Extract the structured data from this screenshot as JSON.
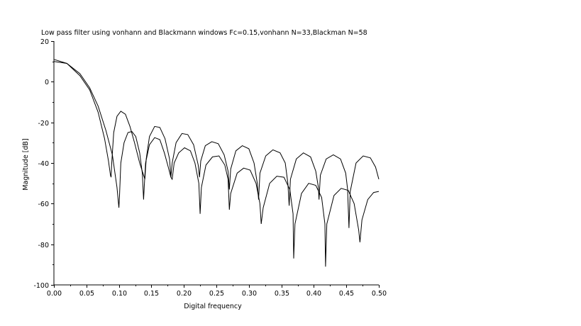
{
  "chart_data": {
    "type": "line",
    "title": "Low pass filter using vonhann and Blackmann windows Fc=0.15,vonhann N=33,Blackman N=58",
    "xlabel": "Digital frequency",
    "ylabel": "Magnitude [dB]",
    "xlim": [
      0,
      0.5
    ],
    "ylim": [
      -100,
      20
    ],
    "x_ticks": [
      0.0,
      0.05,
      0.1,
      0.15,
      0.2,
      0.25,
      0.3,
      0.35,
      0.4,
      0.45,
      0.5
    ],
    "x_tick_labels": [
      "0.00",
      "0.05",
      "0.10",
      "0.15",
      "0.20",
      "0.25",
      "0.30",
      "0.35",
      "0.40",
      "0.45",
      "0.50"
    ],
    "y_ticks": [
      20,
      0,
      -20,
      -40,
      -60,
      -80,
      -100
    ],
    "y_tick_labels": [
      "20",
      "0",
      "-20",
      "-40",
      "-60",
      "-80",
      "-100"
    ],
    "grid": false,
    "series": [
      {
        "x": [
          0.0,
          0.02,
          0.04,
          0.055,
          0.068,
          0.078,
          0.084,
          0.087,
          0.088,
          0.089,
          0.092,
          0.097,
          0.103,
          0.11,
          0.117,
          0.124,
          0.132,
          0.138,
          0.14,
          0.142,
          0.147,
          0.155,
          0.163,
          0.171,
          0.178,
          0.18,
          0.182,
          0.188,
          0.197,
          0.206,
          0.215,
          0.222,
          0.224,
          0.226,
          0.233,
          0.243,
          0.253,
          0.262,
          0.268,
          0.27,
          0.272,
          0.28,
          0.29,
          0.3,
          0.308,
          0.313,
          0.315,
          0.317,
          0.326,
          0.337,
          0.348,
          0.356,
          0.36,
          0.362,
          0.364,
          0.373,
          0.384,
          0.395,
          0.403,
          0.407,
          0.408,
          0.41,
          0.419,
          0.43,
          0.441,
          0.449,
          0.452,
          0.454,
          0.456,
          0.465,
          0.476,
          0.487,
          0.495,
          0.5
        ],
        "y": [
          11,
          9,
          3,
          -4,
          -15,
          -28,
          -39,
          -46,
          -47,
          -40,
          -25,
          -17,
          -14.5,
          -16,
          -22,
          -30,
          -40,
          -46,
          -48,
          -38,
          -27,
          -22,
          -22.5,
          -28,
          -38,
          -47,
          -40,
          -30,
          -25.5,
          -26,
          -31,
          -41,
          -47,
          -39,
          -31.5,
          -29.5,
          -30.5,
          -36,
          -44,
          -53,
          -43,
          -34,
          -31.5,
          -33,
          -40,
          -50,
          -58,
          -45,
          -36.5,
          -33.5,
          -35,
          -40,
          -50,
          -61,
          -48,
          -38,
          -35,
          -37,
          -44,
          -52,
          -58,
          -46,
          -38,
          -36,
          -38,
          -45,
          -53,
          -72,
          -54,
          -40,
          -36.5,
          -37.5,
          -42,
          -48
        ]
      },
      {
        "x": [
          0.0,
          0.02,
          0.04,
          0.055,
          0.068,
          0.08,
          0.09,
          0.097,
          0.1,
          0.101,
          0.103,
          0.108,
          0.114,
          0.12,
          0.126,
          0.132,
          0.136,
          0.138,
          0.139,
          0.141,
          0.147,
          0.155,
          0.163,
          0.17,
          0.176,
          0.18,
          0.182,
          0.185,
          0.192,
          0.201,
          0.21,
          0.217,
          0.223,
          0.225,
          0.227,
          0.234,
          0.244,
          0.254,
          0.263,
          0.268,
          0.27,
          0.272,
          0.282,
          0.292,
          0.302,
          0.311,
          0.317,
          0.319,
          0.322,
          0.332,
          0.343,
          0.354,
          0.363,
          0.368,
          0.369,
          0.371,
          0.381,
          0.392,
          0.403,
          0.412,
          0.417,
          0.418,
          0.42,
          0.431,
          0.442,
          0.453,
          0.462,
          0.469,
          0.471,
          0.474,
          0.483,
          0.492,
          0.5
        ],
        "y": [
          10,
          9,
          4,
          -3,
          -12,
          -24,
          -36,
          -52,
          -62,
          -56,
          -40,
          -30,
          -25,
          -24.5,
          -27,
          -35,
          -45,
          -58,
          -52,
          -40,
          -31,
          -27.5,
          -28.5,
          -35,
          -42,
          -47,
          -48,
          -40,
          -35,
          -32.5,
          -34,
          -40,
          -50,
          -65,
          -52,
          -41,
          -37,
          -36.5,
          -41,
          -48,
          -63,
          -55,
          -45,
          -42.5,
          -43.5,
          -50,
          -60,
          -70,
          -62,
          -50,
          -46.5,
          -47,
          -53,
          -65,
          -87,
          -70,
          -55,
          -50,
          -51,
          -57,
          -70,
          -91,
          -70,
          -56,
          -52.5,
          -53.5,
          -60,
          -73,
          -79,
          -68,
          -58,
          -54.5,
          -54
        ]
      }
    ]
  }
}
